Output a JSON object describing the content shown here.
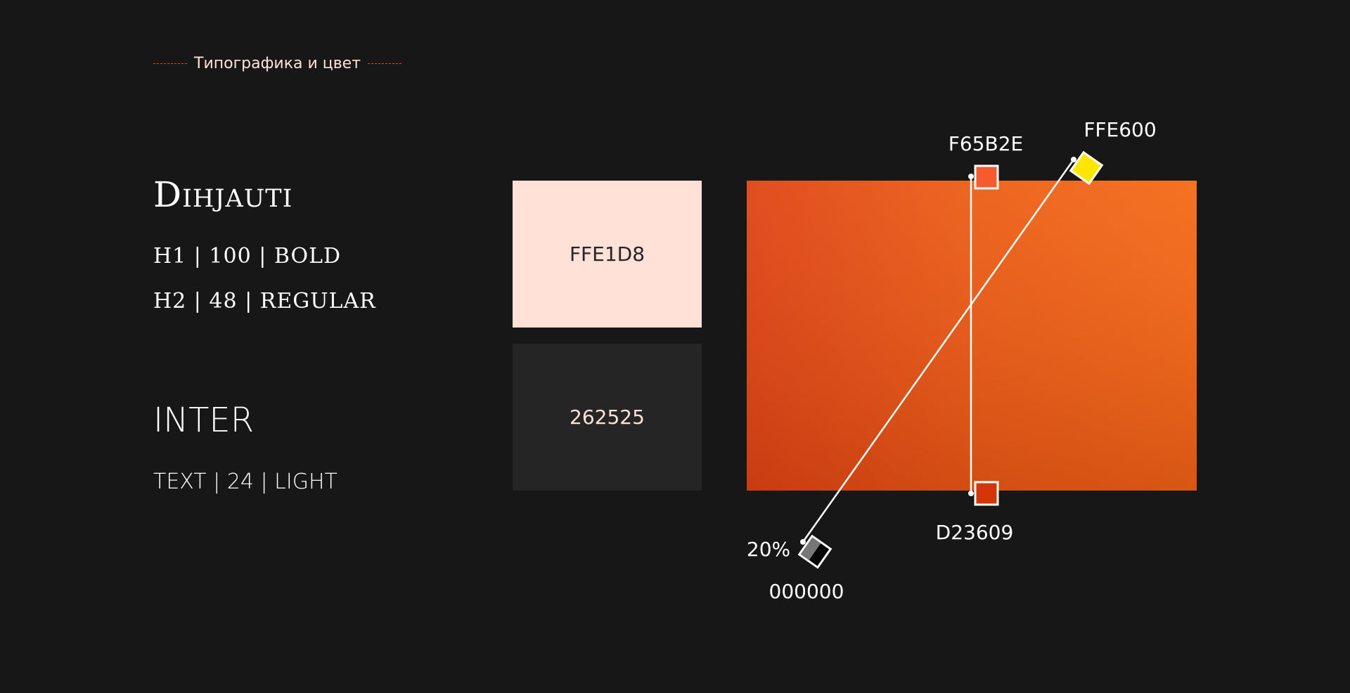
{
  "header": {
    "title": "Типографика и цвет"
  },
  "typography": {
    "serif_font": "Dihjauti",
    "h1_spec": "H1 | 100 | BOLD",
    "h2_spec": "H2 | 48 | REGULAR",
    "sans_font": "INTER",
    "text_spec": "TEXT | 24 | LIGHT"
  },
  "swatches": [
    {
      "label": "FFE1D8",
      "color": "#FFE1D8"
    },
    {
      "label": "262525",
      "color": "#262525"
    }
  ],
  "gradient": {
    "stops": [
      {
        "label": "F65B2E",
        "color": "#F65B2E"
      },
      {
        "label": "D23609",
        "color": "#D23609"
      },
      {
        "label": "FFE600",
        "color": "#FFE600"
      },
      {
        "label": "000000",
        "color": "#000000",
        "opacity_label": "20%"
      }
    ]
  }
}
